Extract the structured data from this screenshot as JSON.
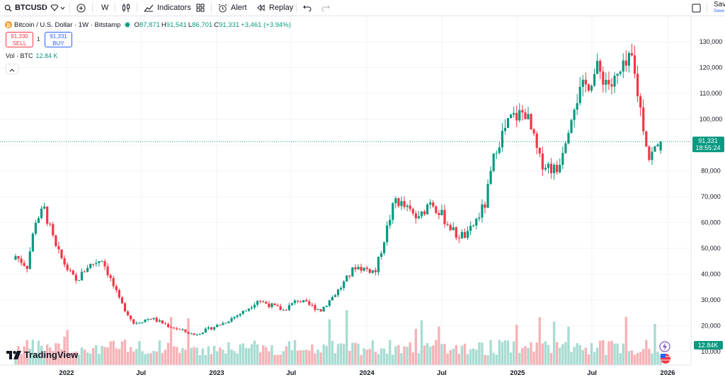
{
  "toolbar": {
    "symbol": "BTCUSD",
    "interval": "W",
    "indicators_label": "Indicators",
    "alert_label": "Alert",
    "replay_label": "Replay",
    "save_label": "Save",
    "saved_label": "Save"
  },
  "legend": {
    "title": "Bitcoin / U.S. Dollar · 1W · Bitstamp",
    "o_key": "O",
    "o_val": "87,871",
    "h_key": "H",
    "h_val": "91,541",
    "l_key": "L",
    "l_val": "86,701",
    "c_key": "C",
    "c_val": "91,331",
    "change": "+3,461 (+3.94%)"
  },
  "trade": {
    "sell_price": "91,330",
    "sell_label": "SELL",
    "spread": "1",
    "buy_price": "91,331",
    "buy_label": "BUY"
  },
  "volume_legend": {
    "label": "Vol · BTC",
    "value": "12.84 K"
  },
  "price_tag": {
    "price": "91,331",
    "countdown": "18:55:24"
  },
  "volume_tag": "12.84K",
  "brand": "TradingView",
  "colors": {
    "up": "#089981",
    "down": "#f23645",
    "vol_up": "#a8dcd2",
    "vol_down": "#f7b2b6",
    "grid": "#f0f3fa"
  },
  "chart_data": {
    "type": "candlestick",
    "x_ticks": [
      "2022",
      "Jul",
      "2023",
      "Jul",
      "2024",
      "Jul",
      "2025",
      "Jul",
      "2026"
    ],
    "y_ticks": [
      "130,000",
      "120,000",
      "110,000",
      "100,000",
      "90,000",
      "80,000",
      "70,000",
      "60,000",
      "50,000",
      "40,000",
      "30,000",
      "20,000",
      "10,000"
    ],
    "ylim": [
      5000,
      135000
    ],
    "grid": true,
    "close_anchors": [
      [
        "2021-08-30",
        47000
      ],
      [
        "2021-09-27",
        43000
      ],
      [
        "2021-10-18",
        61000
      ],
      [
        "2021-11-08",
        65000
      ],
      [
        "2021-12-06",
        50000
      ],
      [
        "2022-01-03",
        42000
      ],
      [
        "2022-01-24",
        37000
      ],
      [
        "2022-02-21",
        43000
      ],
      [
        "2022-03-28",
        46000
      ],
      [
        "2022-05-09",
        30000
      ],
      [
        "2022-06-13",
        21000
      ],
      [
        "2022-07-25",
        23000
      ],
      [
        "2022-09-05",
        20000
      ],
      [
        "2022-11-07",
        16500
      ],
      [
        "2023-01-16",
        21000
      ],
      [
        "2023-03-13",
        26000
      ],
      [
        "2023-04-10",
        30000
      ],
      [
        "2023-06-12",
        26000
      ],
      [
        "2023-07-17",
        30000
      ],
      [
        "2023-09-11",
        26000
      ],
      [
        "2023-10-30",
        35000
      ],
      [
        "2023-12-04",
        43000
      ],
      [
        "2024-01-22",
        41000
      ],
      [
        "2024-02-26",
        62000
      ],
      [
        "2024-03-11",
        69000
      ],
      [
        "2024-05-06",
        61000
      ],
      [
        "2024-06-03",
        69000
      ],
      [
        "2024-08-05",
        55000
      ],
      [
        "2024-09-02",
        55000
      ],
      [
        "2024-10-14",
        67000
      ],
      [
        "2024-11-11",
        90000
      ],
      [
        "2024-12-16",
        100000
      ],
      [
        "2025-01-20",
        103000
      ],
      [
        "2025-02-24",
        84000
      ],
      [
        "2025-04-07",
        80000
      ],
      [
        "2025-05-19",
        107000
      ],
      [
        "2025-07-14",
        119000
      ],
      [
        "2025-08-18",
        113000
      ],
      [
        "2025-10-06",
        123000
      ],
      [
        "2025-11-17",
        85000
      ],
      [
        "2025-12-15",
        91331
      ]
    ],
    "last_candle": {
      "open": 87871,
      "high": 91541,
      "low": 86701,
      "close": 91331
    }
  }
}
